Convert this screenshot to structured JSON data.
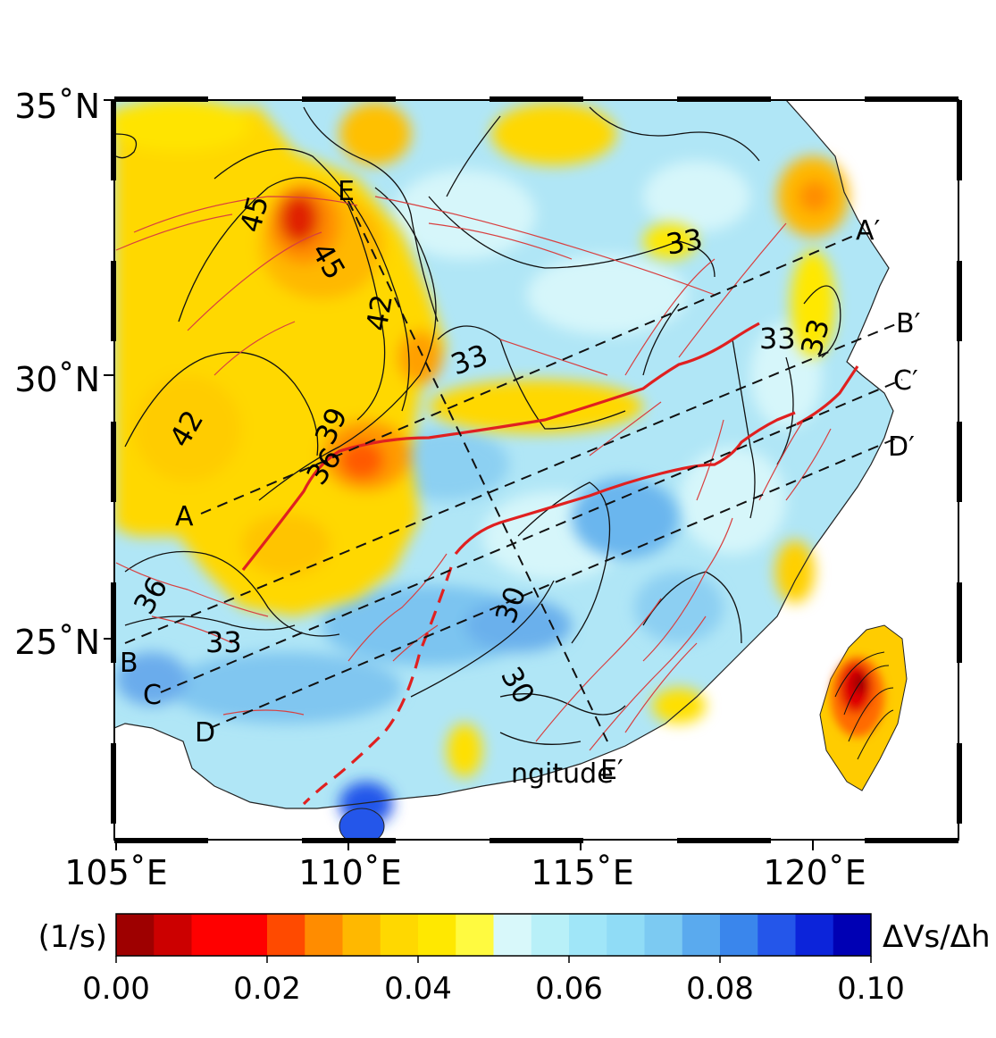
{
  "map": {
    "lat_labels": [
      "35˚N",
      "30˚N",
      "25˚N"
    ],
    "lon_labels": [
      "105˚E",
      "110˚E",
      "115˚E",
      "120˚E"
    ],
    "stray_text": "ngitude",
    "profile_labels": {
      "A": "A",
      "A_end": "A′",
      "B": "B",
      "B_end": "B′",
      "C": "C",
      "C_end": "C′",
      "D": "D",
      "D_end": "D′",
      "E": "E",
      "E_end": "E′"
    },
    "contour_labels": [
      "45",
      "45",
      "42",
      "42",
      "39",
      "36",
      "36",
      "33",
      "33",
      "33",
      "33",
      "33",
      "30",
      "30"
    ],
    "colors": {
      "ocean": "#ffffff",
      "pos_fault": "#e02020",
      "fault_thin": "#d84040",
      "contour": "#111111"
    }
  },
  "colorbar": {
    "unit": "(1/s)",
    "title": "ΔVs/Δh",
    "ticks": [
      "0.00",
      "0.02",
      "0.04",
      "0.06",
      "0.08",
      "0.10"
    ],
    "colors": [
      "#9e0000",
      "#cc0000",
      "#ff0000",
      "#ff0000",
      "#ff4a00",
      "#ff8c00",
      "#ffb800",
      "#ffd800",
      "#ffe800",
      "#fffa40",
      "#d8f8fa",
      "#b8f0f8",
      "#a0e6f8",
      "#90dcf6",
      "#7ccaf2",
      "#5aaaee",
      "#3a86ec",
      "#2456ea",
      "#0c24da",
      "#0000b4"
    ]
  }
}
